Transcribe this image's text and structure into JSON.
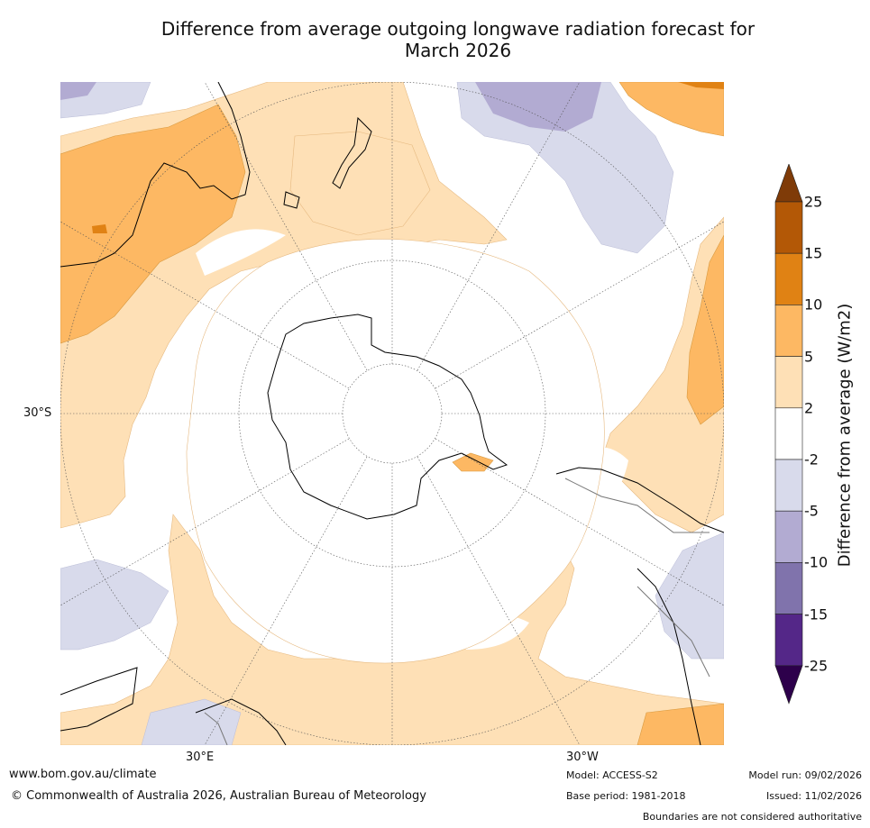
{
  "title": {
    "line1": "Difference from average outgoing longwave radiation forecast for",
    "line2": "March 2026"
  },
  "map": {
    "lat_label": "30°S",
    "lon_labels": {
      "east": "30°E",
      "west": "30°W"
    },
    "projection": "South polar stereographic",
    "regions": [
      "Australia",
      "New Zealand",
      "Antarctica",
      "South America",
      "Southern Africa",
      "Tasmania"
    ]
  },
  "colorbar": {
    "title": "Difference from average (W/m2)",
    "ticks": [
      "25",
      "15",
      "10",
      "5",
      "2",
      "-2",
      "-5",
      "-10",
      "-15",
      "-25"
    ],
    "bins": [
      {
        "from": 25,
        "to": null,
        "color": "#7f3b08"
      },
      {
        "from": 15,
        "to": 25,
        "color": "#b35806"
      },
      {
        "from": 10,
        "to": 15,
        "color": "#e08214"
      },
      {
        "from": 5,
        "to": 10,
        "color": "#fdb863"
      },
      {
        "from": 2,
        "to": 5,
        "color": "#fee0b6"
      },
      {
        "from": -2,
        "to": 2,
        "color": "#ffffff"
      },
      {
        "from": -5,
        "to": -2,
        "color": "#d8daeb"
      },
      {
        "from": -10,
        "to": -5,
        "color": "#b2abd2"
      },
      {
        "from": -15,
        "to": -10,
        "color": "#8073ac"
      },
      {
        "from": -25,
        "to": -15,
        "color": "#542788"
      },
      {
        "from": null,
        "to": -25,
        "color": "#2d004b"
      }
    ]
  },
  "footer": {
    "url": "www.bom.gov.au/climate",
    "copyright": "© Commonwealth of Australia 2026, Australian Bureau of Meteorology",
    "model": "Model: ACCESS-S2",
    "base_period": "Base period: 1981-2018",
    "model_run": "Model run: 09/02/2026",
    "issued": "Issued: 11/02/2026",
    "disclaimer": "Boundaries are not considered authoritative"
  }
}
